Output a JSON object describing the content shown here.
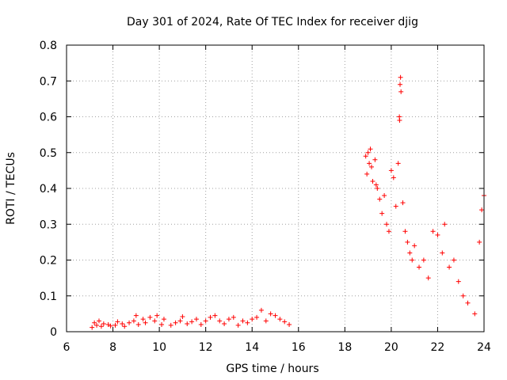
{
  "chart_data": {
    "type": "scatter",
    "title": "Day 301 of 2024, Rate Of TEC Index for receiver djig",
    "xlabel": "GPS time / hours",
    "ylabel": "ROTI / TECUs",
    "xlim": [
      6,
      24
    ],
    "ylim": [
      0,
      0.8
    ],
    "xticks": [
      6,
      8,
      10,
      12,
      14,
      16,
      18,
      20,
      22,
      24
    ],
    "yticks": [
      0,
      0.1,
      0.2,
      0.3,
      0.4,
      0.5,
      0.6,
      0.7,
      0.8
    ],
    "xtick_labels": [
      "6",
      "8",
      "10",
      "12",
      "14",
      "16",
      "18",
      "20",
      "22",
      "24"
    ],
    "ytick_labels": [
      "0",
      "0.1",
      "0.2",
      "0.3",
      "0.4",
      "0.5",
      "0.6",
      "0.7",
      "0.8"
    ],
    "grid": true,
    "marker": "plus",
    "color": "#ff0000",
    "series": [
      {
        "name": "ROTI",
        "points": [
          [
            7.1,
            0.012
          ],
          [
            7.2,
            0.025
          ],
          [
            7.3,
            0.018
          ],
          [
            7.4,
            0.03
          ],
          [
            7.5,
            0.015
          ],
          [
            7.6,
            0.022
          ],
          [
            7.8,
            0.02
          ],
          [
            7.9,
            0.016
          ],
          [
            8.1,
            0.018
          ],
          [
            8.2,
            0.028
          ],
          [
            8.4,
            0.022
          ],
          [
            8.5,
            0.015
          ],
          [
            8.7,
            0.025
          ],
          [
            8.9,
            0.03
          ],
          [
            9.0,
            0.045
          ],
          [
            9.1,
            0.02
          ],
          [
            9.3,
            0.035
          ],
          [
            9.4,
            0.025
          ],
          [
            9.6,
            0.04
          ],
          [
            9.8,
            0.03
          ],
          [
            9.9,
            0.045
          ],
          [
            10.1,
            0.02
          ],
          [
            10.2,
            0.035
          ],
          [
            10.5,
            0.018
          ],
          [
            10.7,
            0.025
          ],
          [
            10.9,
            0.03
          ],
          [
            11.0,
            0.042
          ],
          [
            11.2,
            0.022
          ],
          [
            11.4,
            0.028
          ],
          [
            11.6,
            0.035
          ],
          [
            11.8,
            0.02
          ],
          [
            12.0,
            0.03
          ],
          [
            12.2,
            0.04
          ],
          [
            12.4,
            0.045
          ],
          [
            12.6,
            0.03
          ],
          [
            12.8,
            0.022
          ],
          [
            13.0,
            0.035
          ],
          [
            13.2,
            0.04
          ],
          [
            13.4,
            0.018
          ],
          [
            13.6,
            0.03
          ],
          [
            13.8,
            0.025
          ],
          [
            14.0,
            0.035
          ],
          [
            14.2,
            0.04
          ],
          [
            14.4,
            0.06
          ],
          [
            14.6,
            0.03
          ],
          [
            14.8,
            0.05
          ],
          [
            15.0,
            0.045
          ],
          [
            15.2,
            0.035
          ],
          [
            15.4,
            0.028
          ],
          [
            15.6,
            0.02
          ],
          [
            18.9,
            0.49
          ],
          [
            18.95,
            0.44
          ],
          [
            19.0,
            0.5
          ],
          [
            19.05,
            0.47
          ],
          [
            19.1,
            0.51
          ],
          [
            19.15,
            0.46
          ],
          [
            19.2,
            0.42
          ],
          [
            19.3,
            0.48
          ],
          [
            19.35,
            0.41
          ],
          [
            19.4,
            0.4
          ],
          [
            19.5,
            0.37
          ],
          [
            19.6,
            0.33
          ],
          [
            19.7,
            0.38
          ],
          [
            19.8,
            0.3
          ],
          [
            19.9,
            0.28
          ],
          [
            20.0,
            0.45
          ],
          [
            20.1,
            0.43
          ],
          [
            20.2,
            0.35
          ],
          [
            20.3,
            0.47
          ],
          [
            20.35,
            0.6
          ],
          [
            20.4,
            0.71
          ],
          [
            20.38,
            0.69
          ],
          [
            20.42,
            0.67
          ],
          [
            20.36,
            0.59
          ],
          [
            20.5,
            0.36
          ],
          [
            20.6,
            0.28
          ],
          [
            20.7,
            0.25
          ],
          [
            20.8,
            0.22
          ],
          [
            20.9,
            0.2
          ],
          [
            21.0,
            0.24
          ],
          [
            21.2,
            0.18
          ],
          [
            21.4,
            0.2
          ],
          [
            21.6,
            0.15
          ],
          [
            21.8,
            0.28
          ],
          [
            22.0,
            0.27
          ],
          [
            22.2,
            0.22
          ],
          [
            22.3,
            0.3
          ],
          [
            22.5,
            0.18
          ],
          [
            22.7,
            0.2
          ],
          [
            22.9,
            0.14
          ],
          [
            23.1,
            0.1
          ],
          [
            23.3,
            0.08
          ],
          [
            23.6,
            0.05
          ],
          [
            23.8,
            0.25
          ],
          [
            23.9,
            0.34
          ],
          [
            24.0,
            0.38
          ]
        ]
      }
    ]
  }
}
